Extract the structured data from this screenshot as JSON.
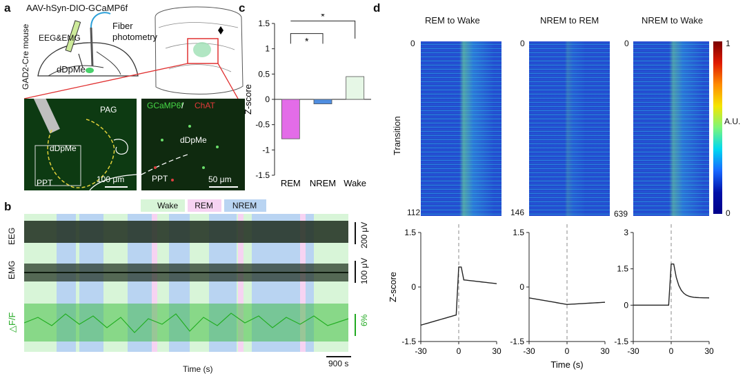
{
  "panels": {
    "a": {
      "letter": "a",
      "construct": "AAV-hSyn-DIO-GCaMP6f",
      "mouse": "GAD2-Cre mouse",
      "eeg_emg": "EEG&EMG",
      "fiber_photometry": "Fiber\nphotometry",
      "region_left": "dDpMe",
      "micro1": {
        "pag": "PAG",
        "dDpMe": "dDpMe",
        "ppt": "PPT",
        "scale": "100 μm"
      },
      "micro2": {
        "gcamp": "GCaMP6f",
        "sep": " / ",
        "chat": "ChAT",
        "dDpMe": "dDpMe",
        "ppt": "PPT",
        "scale": "50 μm"
      }
    },
    "b": {
      "letter": "b",
      "legend": [
        {
          "label": "Wake",
          "color": "#d8f5d8"
        },
        {
          "label": "REM",
          "color": "#f6d3f2"
        },
        {
          "label": "NREM",
          "color": "#b9d4f2"
        }
      ],
      "traces": {
        "eeg": "EEG",
        "emg": "EMG",
        "dff": "△F/F"
      },
      "scales": {
        "eeg": "200 μV",
        "emg": "100 μV",
        "dff": "6%",
        "time": "900 s"
      },
      "xlabel": "Time (s)"
    },
    "c": {
      "letter": "c",
      "chart_data": {
        "type": "bar",
        "categories": [
          "REM",
          "NREM",
          "Wake"
        ],
        "values": [
          -0.78,
          -0.09,
          0.45
        ],
        "colors": [
          "#e36ce8",
          "#4f8ee0",
          "#e6f7e6"
        ],
        "ylabel": "Z-score",
        "ylim": [
          -1.5,
          1.5
        ],
        "yticks": [
          "1.5",
          "1",
          "0.5",
          "0",
          "-0.5",
          "-1",
          "-1.5"
        ],
        "significance": "*"
      }
    },
    "d": {
      "letter": "d",
      "titles": [
        "REM to Wake",
        "NREM to REM",
        "NREM to Wake"
      ],
      "heatmap_ylabel": "Transition",
      "row_start": "0",
      "row_ends": [
        "112",
        "146",
        "639"
      ],
      "colorbar": {
        "max": "1",
        "mid": "A.U.",
        "min": "0"
      },
      "line_ylabel": "Z-score",
      "xlabel": "Time (s)",
      "xticks": [
        "-30",
        "0",
        "30"
      ],
      "yticks_1": [
        "1.5",
        "0",
        "-1.5"
      ],
      "yticks_2": [
        "1.5",
        "0",
        "-1.5"
      ],
      "yticks_3": [
        "3",
        "1.5",
        "0",
        "-1.5"
      ]
    }
  }
}
